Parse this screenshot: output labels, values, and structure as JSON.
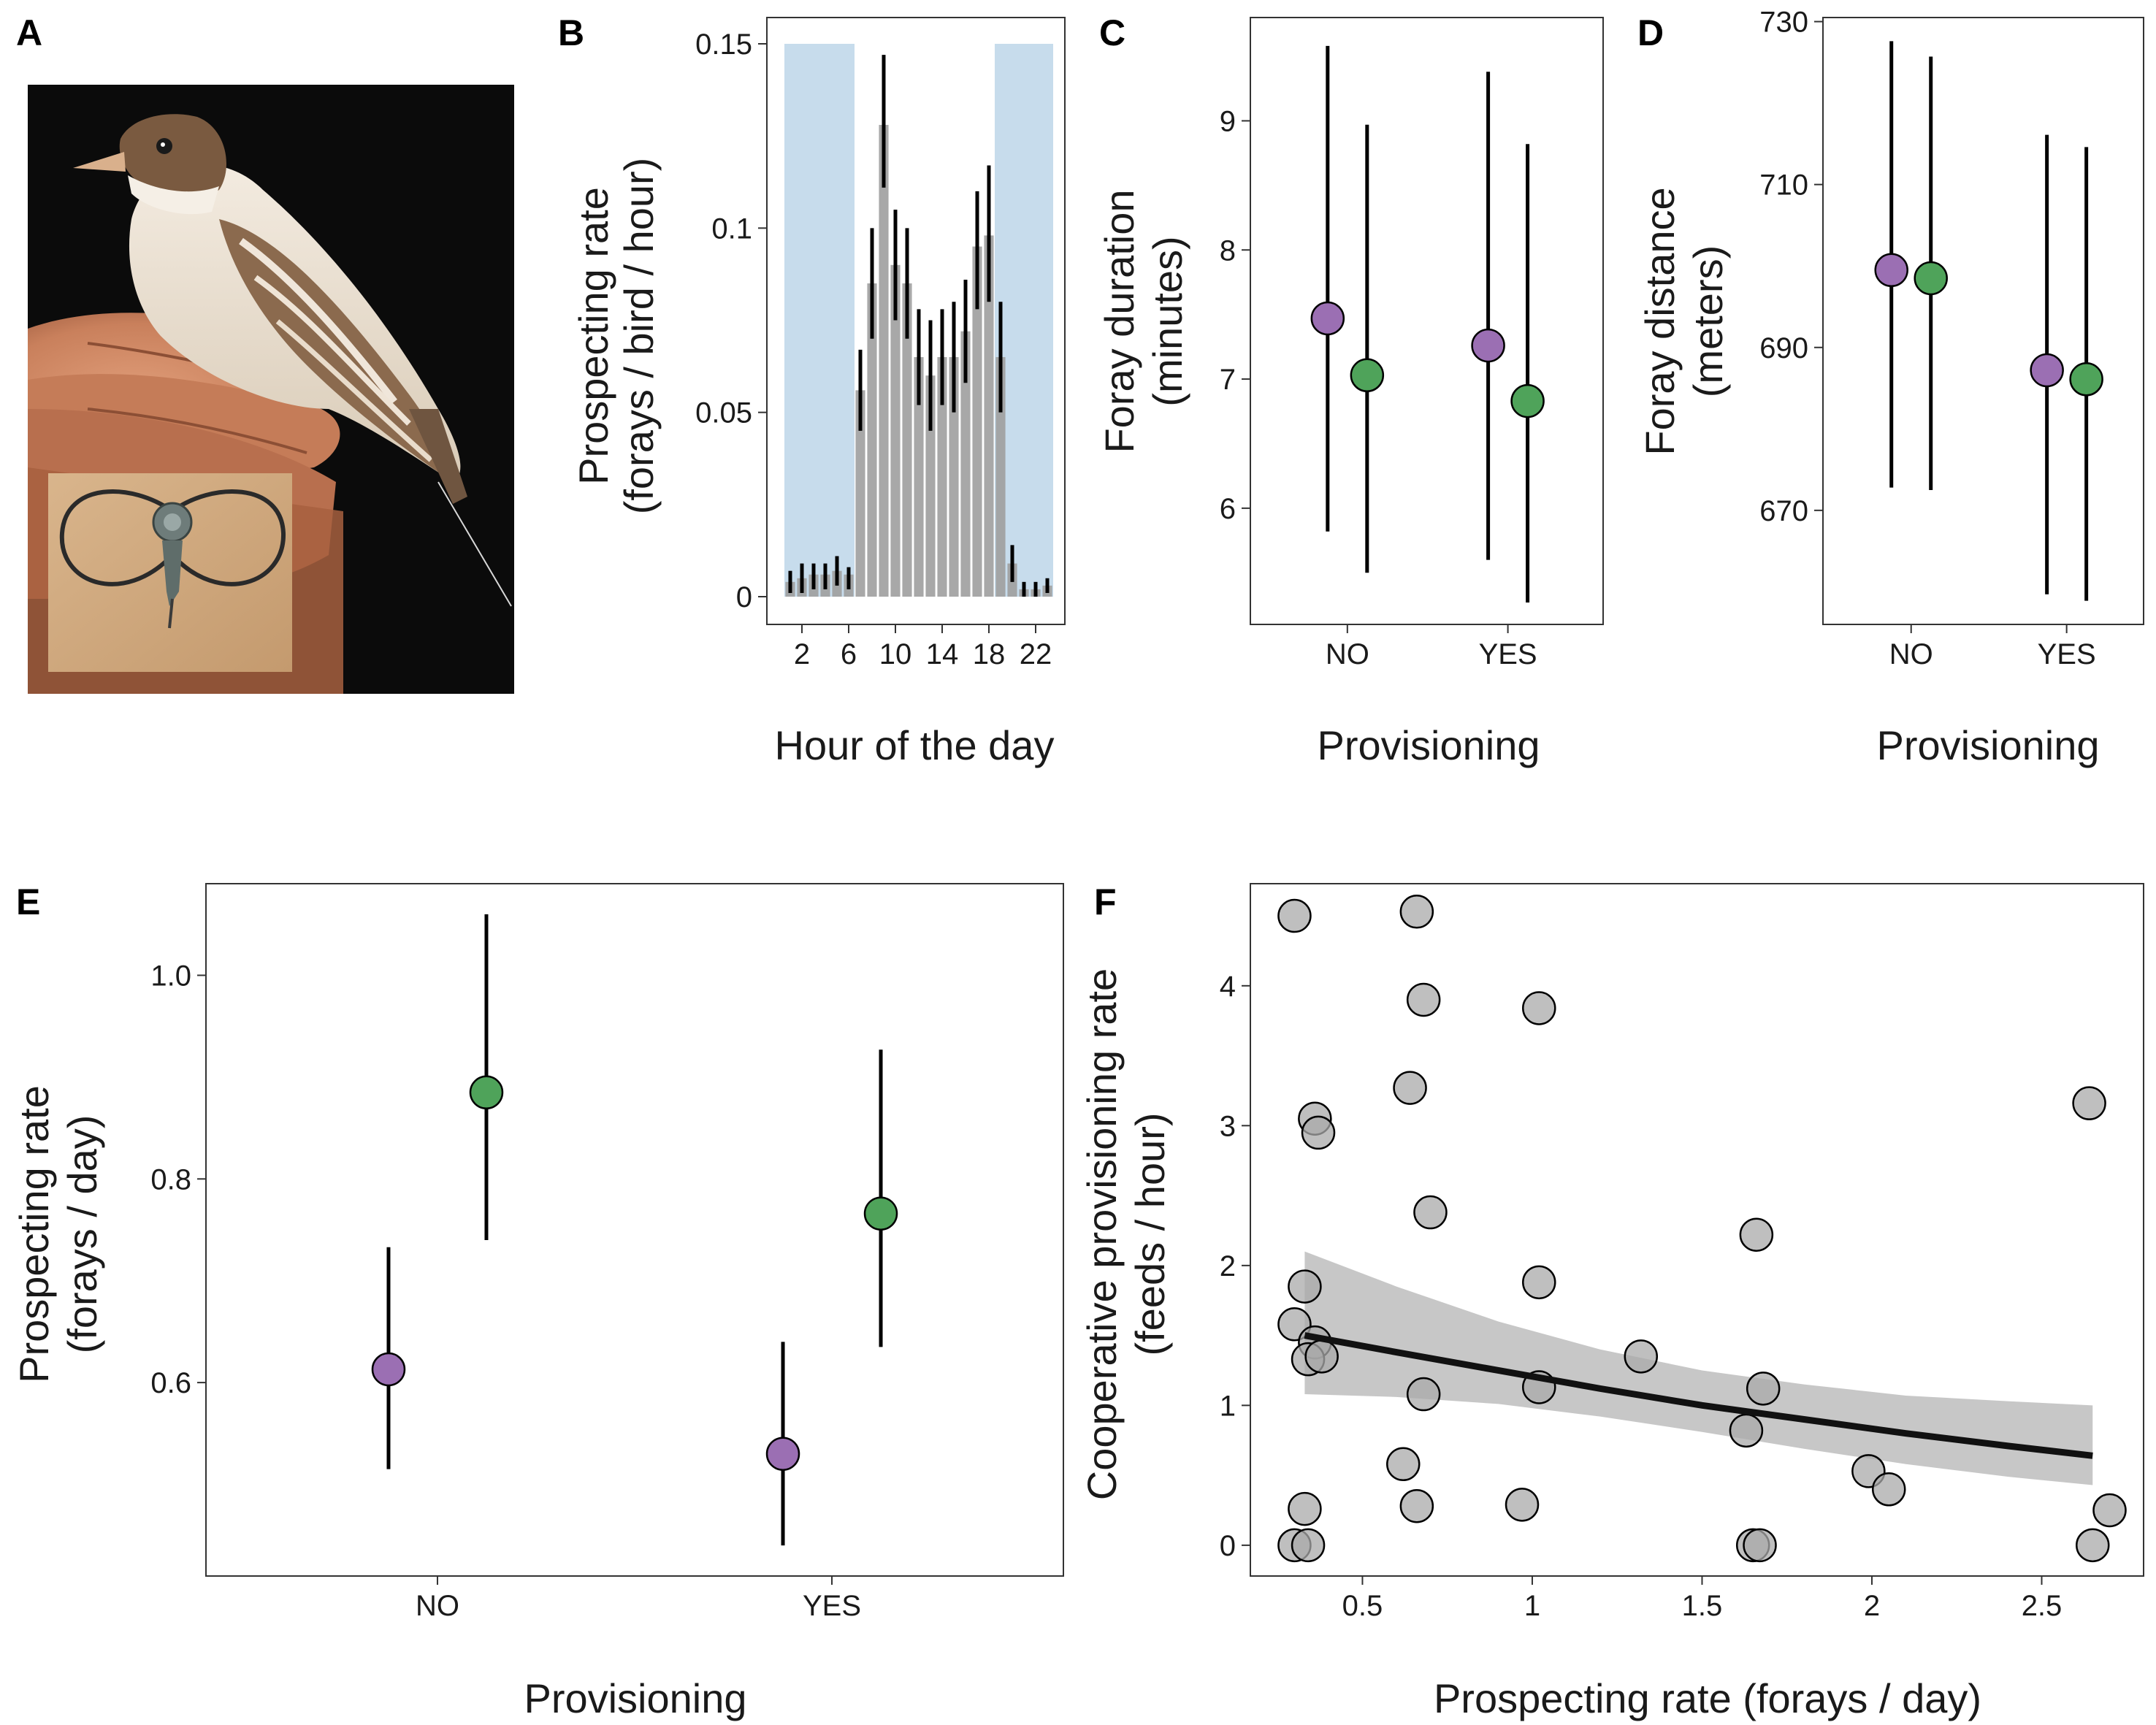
{
  "colors": {
    "purple": "#9b6fb3",
    "green": "#4fa35a",
    "bar": "#9e9e9e",
    "night_shade": "#c7dcec",
    "ribbon": "#c4c4c4",
    "line": "#111111"
  },
  "panels": {
    "A": {
      "label": "A"
    },
    "B": {
      "label": "B"
    },
    "C": {
      "label": "C"
    },
    "D": {
      "label": "D"
    },
    "E": {
      "label": "E"
    },
    "F": {
      "label": "F"
    }
  },
  "photo": {
    "subject": "bird on hand with tracking tag inset"
  },
  "chart_data": [
    {
      "panel": "B",
      "type": "bar",
      "xlabel": "Hour of the day",
      "ylabel": [
        "Prospecting rate",
        "(forays / bird / hour)"
      ],
      "ylim": [
        0,
        0.15
      ],
      "yticks": [
        0,
        0.05,
        0.1,
        0.15
      ],
      "ytick_labels": [
        "0",
        "0.05",
        "0.1",
        "0.15"
      ],
      "xticks": [
        2,
        6,
        10,
        14,
        18,
        22
      ],
      "night_shading": [
        [
          0.5,
          6.5
        ],
        [
          18.5,
          23.5
        ]
      ],
      "hours": [
        1,
        2,
        3,
        4,
        5,
        6,
        7,
        8,
        9,
        10,
        11,
        12,
        13,
        14,
        15,
        16,
        17,
        18,
        19,
        20,
        21,
        22,
        23
      ],
      "values": [
        0.004,
        0.005,
        0.006,
        0.006,
        0.007,
        0.006,
        0.056,
        0.085,
        0.128,
        0.09,
        0.085,
        0.065,
        0.06,
        0.065,
        0.065,
        0.072,
        0.095,
        0.098,
        0.065,
        0.009,
        0.002,
        0.002,
        0.003
      ],
      "lower": [
        0.001,
        0.001,
        0.002,
        0.002,
        0.003,
        0.002,
        0.045,
        0.07,
        0.111,
        0.075,
        0.07,
        0.052,
        0.045,
        0.052,
        0.05,
        0.058,
        0.078,
        0.08,
        0.05,
        0.004,
        0.0,
        0.0,
        0.001
      ],
      "upper": [
        0.007,
        0.009,
        0.009,
        0.009,
        0.011,
        0.008,
        0.067,
        0.1,
        0.147,
        0.105,
        0.1,
        0.078,
        0.075,
        0.078,
        0.08,
        0.086,
        0.11,
        0.117,
        0.08,
        0.014,
        0.004,
        0.004,
        0.005
      ],
      "grid": false
    },
    {
      "panel": "C",
      "type": "scatter",
      "xlabel": "Provisioning",
      "ylabel": [
        "Foray duration",
        "(minutes)"
      ],
      "categories": [
        "NO",
        "YES"
      ],
      "ylim": [
        5.1,
        9.8
      ],
      "yticks": [
        6,
        7,
        8,
        9
      ],
      "series": [
        {
          "color": "purple",
          "values": [
            7.47,
            7.26
          ],
          "lower": [
            5.82,
            5.6
          ],
          "upper": [
            9.58,
            9.38
          ]
        },
        {
          "color": "green",
          "values": [
            7.03,
            6.83
          ],
          "lower": [
            5.5,
            5.27
          ],
          "upper": [
            8.97,
            8.82
          ]
        }
      ],
      "grid": false
    },
    {
      "panel": "D",
      "type": "scatter",
      "xlabel": "Provisioning",
      "ylabel": [
        "Foray distance",
        "(meters)"
      ],
      "categories": [
        "NO",
        "YES"
      ],
      "ylim": [
        656,
        730.5
      ],
      "yticks": [
        670,
        690,
        710,
        730
      ],
      "series": [
        {
          "color": "purple",
          "values": [
            699.5,
            687.2
          ],
          "lower": [
            672.8,
            659.7
          ],
          "upper": [
            727.6,
            716.1
          ]
        },
        {
          "color": "green",
          "values": [
            698.5,
            686.1
          ],
          "lower": [
            672.5,
            658.9
          ],
          "upper": [
            725.7,
            714.6
          ]
        }
      ],
      "grid": false
    },
    {
      "panel": "E",
      "type": "scatter",
      "xlabel": "Provisioning",
      "ylabel": [
        "Prospecting rate",
        "(forays / day)"
      ],
      "categories": [
        "NO",
        "YES"
      ],
      "ylim": [
        0.41,
        1.09
      ],
      "yticks": [
        0.6,
        0.8,
        1.0
      ],
      "ytick_labels": [
        "0.6",
        "0.8",
        "1.0"
      ],
      "series": [
        {
          "color": "purple",
          "values": [
            0.613,
            0.53
          ],
          "lower": [
            0.515,
            0.44
          ],
          "upper": [
            0.733,
            0.64
          ]
        },
        {
          "color": "green",
          "values": [
            0.885,
            0.766
          ],
          "lower": [
            0.74,
            0.635
          ],
          "upper": [
            1.06,
            0.927
          ]
        }
      ],
      "grid": false
    },
    {
      "panel": "F",
      "type": "scatter",
      "xlabel": "Prospecting rate (forays / day)",
      "ylabel": [
        "Cooperative provisioning rate",
        "(feeds / hour)"
      ],
      "xlim": [
        0.17,
        2.8
      ],
      "ylim": [
        -0.22,
        4.73
      ],
      "xticks": [
        0.5,
        1,
        1.5,
        2,
        2.5
      ],
      "xtick_labels": [
        "0.5",
        "1",
        "1.5",
        "2",
        "2.5"
      ],
      "yticks": [
        0,
        1,
        2,
        3,
        4
      ],
      "points": [
        {
          "x": 0.3,
          "y": 4.5
        },
        {
          "x": 0.66,
          "y": 4.53
        },
        {
          "x": 0.68,
          "y": 3.9
        },
        {
          "x": 1.02,
          "y": 3.84
        },
        {
          "x": 0.64,
          "y": 3.27
        },
        {
          "x": 0.36,
          "y": 3.05
        },
        {
          "x": 0.37,
          "y": 2.95
        },
        {
          "x": 0.7,
          "y": 2.38
        },
        {
          "x": 1.66,
          "y": 2.22
        },
        {
          "x": 1.02,
          "y": 1.88
        },
        {
          "x": 0.33,
          "y": 1.85
        },
        {
          "x": 0.3,
          "y": 1.58
        },
        {
          "x": 0.36,
          "y": 1.45
        },
        {
          "x": 0.34,
          "y": 1.33
        },
        {
          "x": 0.38,
          "y": 1.35
        },
        {
          "x": 1.32,
          "y": 1.35
        },
        {
          "x": 1.02,
          "y": 1.13
        },
        {
          "x": 1.68,
          "y": 1.12
        },
        {
          "x": 0.68,
          "y": 1.08
        },
        {
          "x": 1.63,
          "y": 0.82
        },
        {
          "x": 0.62,
          "y": 0.58
        },
        {
          "x": 1.99,
          "y": 0.53
        },
        {
          "x": 2.05,
          "y": 0.4
        },
        {
          "x": 0.66,
          "y": 0.28
        },
        {
          "x": 0.97,
          "y": 0.29
        },
        {
          "x": 0.33,
          "y": 0.26
        },
        {
          "x": 0.3,
          "y": 0.0
        },
        {
          "x": 0.34,
          "y": 0.0
        },
        {
          "x": 1.65,
          "y": 0.0
        },
        {
          "x": 1.67,
          "y": 0.0
        },
        {
          "x": 2.64,
          "y": 3.16
        },
        {
          "x": 2.7,
          "y": 0.25
        },
        {
          "x": 2.65,
          "y": 0.0
        }
      ],
      "fit": {
        "x": [
          0.33,
          0.6,
          0.9,
          1.2,
          1.5,
          1.8,
          2.1,
          2.4,
          2.65
        ],
        "y": [
          1.5,
          1.38,
          1.25,
          1.12,
          1.0,
          0.9,
          0.8,
          0.71,
          0.64
        ],
        "lower": [
          1.08,
          1.06,
          1.01,
          0.92,
          0.81,
          0.69,
          0.58,
          0.49,
          0.43
        ],
        "upper": [
          2.1,
          1.85,
          1.6,
          1.4,
          1.25,
          1.15,
          1.07,
          1.03,
          1.0
        ]
      },
      "grid": false
    }
  ]
}
